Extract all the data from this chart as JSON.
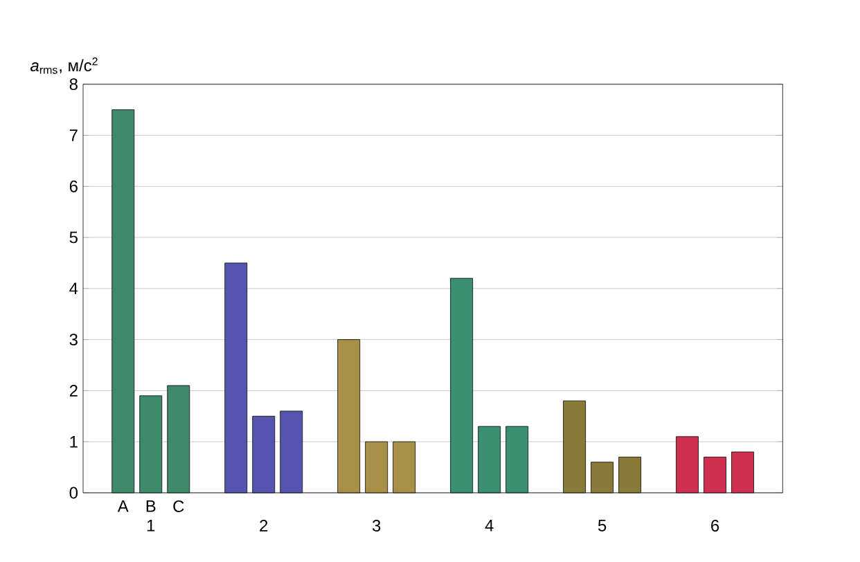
{
  "chart_data": {
    "type": "bar",
    "ylabel": "*a*$_{rms}$, м/с$^{2}$",
    "categories": [
      "1",
      "2",
      "3",
      "4",
      "5",
      "6"
    ],
    "series": [
      {
        "name": "A",
        "colors": [
          "#3f8a6a",
          "#5555b0",
          "#a89048",
          "#3a9070",
          "#8a7a3a",
          "#d03050"
        ],
        "values": [
          7.5,
          4.5,
          3.0,
          4.2,
          1.8,
          1.1
        ]
      },
      {
        "name": "B",
        "colors": [
          "#3f8a6a",
          "#5555b0",
          "#a89048",
          "#3a9070",
          "#8a7a3a",
          "#d03050"
        ],
        "values": [
          1.9,
          1.5,
          1.0,
          1.3,
          0.6,
          0.7
        ]
      },
      {
        "name": "C",
        "colors": [
          "#3f8a6a",
          "#5555b0",
          "#a89048",
          "#3a9070",
          "#8a7a3a",
          "#d03050"
        ],
        "values": [
          2.1,
          1.6,
          1.0,
          1.3,
          0.7,
          0.8
        ]
      }
    ],
    "ylim": [
      0,
      8
    ],
    "yticks": [
      0,
      1,
      2,
      3,
      4,
      5,
      6,
      7,
      8
    ],
    "grid": "y"
  }
}
